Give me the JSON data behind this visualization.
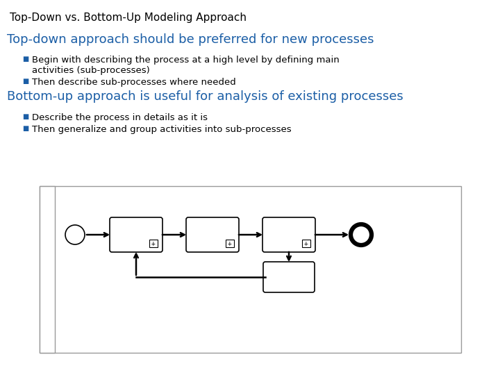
{
  "title": "Top-Down vs. Bottom-Up Modeling Approach",
  "title_fontsize": 11,
  "title_color": "#000000",
  "heading1": "Top-down approach should be preferred for new processes",
  "heading1_color": "#1B5EA6",
  "heading1_fontsize": 13,
  "heading2": "Bottom-up approach is useful for analysis of existing processes",
  "heading2_color": "#1B5EA6",
  "heading2_fontsize": 13,
  "bullet1_1a": "Begin with describing the process at a high level by defining main",
  "bullet1_1b": "activities (sub-processes)",
  "bullet1_2": "Then describe sub-processes where needed",
  "bullet2_1": "Describe the process in details as it is",
  "bullet2_2": "Then generalize and group activities into sub-processes",
  "bullet_color": "#000000",
  "bullet_fontsize": 9.5,
  "bullet_marker_color": "#1B5EA6",
  "bg_color": "#FFFFFF"
}
